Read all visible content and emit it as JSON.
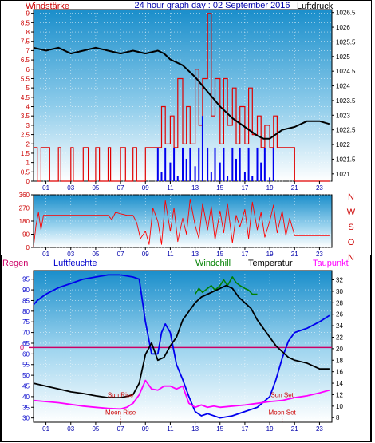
{
  "header": {
    "left_title": "Windstärke",
    "center_title": "24 hour graph day : 02 September 2016",
    "right_title": "Luftdruck"
  },
  "bottom_header": {
    "regen": "Regen",
    "luftfeuchte": "Luftfeuchte",
    "windchill": "Windchill",
    "temperatur": "Temperatur",
    "taupunkt": "Taupunkt"
  },
  "colors": {
    "wind_speed": "#e00000",
    "gust": "#0000ee",
    "pressure": "#000000",
    "direction": "#ff0000",
    "humidity": "#0000ee",
    "temperature": "#000000",
    "windchill": "#008000",
    "dewpoint": "#ff00ff",
    "rain_line": "#cc0066",
    "annotation": "#cc0000"
  },
  "chart_data": [
    {
      "type": "line",
      "panel": "wind-pressure",
      "x_ticks": [
        "01",
        "03",
        "05",
        "07",
        "09",
        "11",
        "13",
        "15",
        "17",
        "19",
        "21",
        "23"
      ],
      "xlim": [
        0,
        24
      ],
      "y_left_ticks": [
        "0",
        "0.5",
        "1",
        "1.5",
        "2",
        "2.5",
        "3",
        "3.5",
        "4",
        "4.5",
        "5",
        "5.5",
        "6",
        "6.5",
        "7",
        "7.5",
        "8",
        "8.5",
        "9"
      ],
      "ylim_left": [
        0,
        9.2
      ],
      "y_right_ticks": [
        "1021",
        "1021.5",
        "1022",
        "1022.5",
        "1023",
        "1023.5",
        "1024",
        "1024.5",
        "1025",
        "1025.5",
        "1026",
        "1026.5"
      ],
      "ylim_right": [
        1020.75,
        1026.6
      ],
      "series": [
        {
          "key": "pressure",
          "axis": "right",
          "x": [
            0,
            1,
            2,
            3,
            4,
            5,
            6,
            7,
            8,
            9,
            10,
            10.5,
            11,
            12,
            13,
            14,
            15,
            16,
            17,
            18,
            18.5,
            19,
            20,
            21,
            22,
            23,
            23.8
          ],
          "values": [
            1025.3,
            1025.2,
            1025.3,
            1025.1,
            1025.2,
            1025.3,
            1025.2,
            1025.1,
            1025.2,
            1025.1,
            1025.2,
            1025.1,
            1024.9,
            1024.7,
            1024.3,
            1023.8,
            1023.3,
            1022.9,
            1022.6,
            1022.3,
            1022.2,
            1022.2,
            1022.5,
            1022.6,
            1022.8,
            1022.8,
            1022.7
          ]
        },
        {
          "key": "wind_speed",
          "axis": "left",
          "x": [
            0,
            0.3,
            0.6,
            1,
            1.3,
            2,
            2.2,
            3,
            3.2,
            4,
            4.4,
            5,
            5.3,
            6,
            6.2,
            7,
            7.4,
            8,
            8.3,
            9,
            9.6,
            10,
            10.3,
            10.6,
            11,
            11.3,
            11.6,
            12,
            12.3,
            12.6,
            13,
            13.3,
            13.6,
            14,
            14.3,
            14.6,
            15,
            15.3,
            15.6,
            16,
            16.3,
            16.6,
            17,
            17.3,
            17.6,
            18,
            18.3,
            18.6,
            19,
            19.3,
            19.6,
            20,
            20.5,
            21,
            22,
            23,
            23.8
          ],
          "values": [
            1.8,
            0,
            1.8,
            1.8,
            0,
            1.8,
            0,
            1.8,
            0,
            1.8,
            0,
            1.8,
            0,
            1.8,
            0,
            1.8,
            0,
            1.8,
            0,
            1.8,
            1.8,
            1.8,
            4,
            2,
            3.5,
            1.8,
            5.5,
            2,
            4,
            2,
            6,
            3,
            5.5,
            9,
            3.5,
            5.5,
            2,
            5.5,
            3,
            5,
            2,
            4,
            2,
            5,
            2.5,
            3.5,
            1.8,
            3,
            1.8,
            3.5,
            1.8,
            1.8,
            1.8,
            0,
            0,
            0,
            0
          ]
        },
        {
          "key": "gust",
          "axis": "left",
          "x": [
            10,
            10.3,
            10.6,
            11,
            11.3,
            11.6,
            12,
            12.3,
            12.6,
            13,
            13.3,
            13.6,
            14,
            14.3,
            14.6,
            15,
            15.3,
            15.6,
            16,
            16.3,
            16.6,
            17,
            17.3,
            17.6,
            18,
            18.3,
            18.6,
            19,
            19.3
          ],
          "values": [
            1.8,
            0.5,
            1.8,
            1,
            1.8,
            0.3,
            1.8,
            1.2,
            1.8,
            0.8,
            1.8,
            3.5,
            1.8,
            0.5,
            1.8,
            1,
            1.8,
            0.3,
            1.8,
            1.2,
            1.8,
            0.5,
            1.8,
            0.3,
            1.8,
            1,
            1.8,
            0.2,
            1.8
          ]
        }
      ]
    },
    {
      "type": "line",
      "panel": "wind-direction",
      "x_ticks": [
        "01",
        "03",
        "05",
        "07",
        "09",
        "11",
        "13",
        "15",
        "17",
        "19",
        "21",
        "23"
      ],
      "xlim": [
        0,
        24
      ],
      "y_ticks": [
        "0",
        "90",
        "180",
        "270",
        "360"
      ],
      "ylim": [
        0,
        360
      ],
      "right_labels": [
        "N",
        "W",
        "S",
        "O",
        "N"
      ],
      "series": [
        {
          "key": "direction",
          "x": [
            0,
            0.2,
            0.4,
            0.6,
            0.8,
            1,
            2,
            3,
            4,
            5,
            6,
            6.3,
            6.6,
            7,
            7.5,
            8,
            8.3,
            8.6,
            9,
            9.3,
            9.6,
            10,
            10.3,
            10.6,
            11,
            11.3,
            11.6,
            12,
            12.3,
            12.6,
            13,
            13.3,
            13.6,
            14,
            14.3,
            14.6,
            15,
            15.3,
            15.6,
            16,
            16.3,
            16.6,
            17,
            17.3,
            17.6,
            18,
            18.3,
            18.6,
            19,
            19.3,
            19.6,
            20,
            20.3,
            20.6,
            21,
            22,
            23,
            23.8
          ],
          "values": [
            0,
            150,
            240,
            120,
            220,
            220,
            220,
            220,
            220,
            220,
            220,
            190,
            240,
            230,
            220,
            220,
            170,
            60,
            110,
            20,
            270,
            180,
            20,
            320,
            110,
            270,
            40,
            200,
            90,
            330,
            150,
            60,
            300,
            120,
            280,
            50,
            250,
            100,
            300,
            30,
            220,
            140,
            260,
            60,
            310,
            120,
            240,
            70,
            180,
            290,
            100,
            250,
            80,
            200,
            80,
            80,
            80,
            80
          ]
        }
      ]
    },
    {
      "type": "line",
      "panel": "temperature-humidity",
      "x_ticks": [
        "01",
        "03",
        "05",
        "07",
        "09",
        "11",
        "13",
        "15",
        "17",
        "19",
        "21",
        "23"
      ],
      "xlim": [
        0,
        24
      ],
      "y_left_ticks": [
        "30",
        "35",
        "40",
        "45",
        "50",
        "55",
        "60",
        "65",
        "70",
        "75",
        "80",
        "85",
        "90",
        "95"
      ],
      "ylim_left": [
        28,
        99
      ],
      "y_right_ticks": [
        "8",
        "10",
        "12",
        "14",
        "16",
        "18",
        "20",
        "22",
        "24",
        "26",
        "28",
        "30",
        "32"
      ],
      "ylim_right": [
        7.2,
        33.6
      ],
      "rain_value": "0",
      "annotations": [
        {
          "label": "Sun Rise",
          "x": 7.0,
          "y_left": 39.8,
          "marker": false
        },
        {
          "label": "Moon Rise",
          "x": 7.0,
          "y_left": 31.5,
          "marker": true
        },
        {
          "label": "Sun Set",
          "x": 20.0,
          "y_left": 39.8,
          "marker": false
        },
        {
          "label": "Moon Set",
          "x": 20.0,
          "y_left": 31.5,
          "marker": true
        }
      ],
      "series": [
        {
          "key": "humidity",
          "axis": "left",
          "x": [
            0,
            0.3,
            1,
            2,
            3,
            4,
            5,
            6,
            7,
            8,
            8.5,
            9,
            9.5,
            10,
            10.3,
            10.6,
            11,
            11.5,
            12,
            12.5,
            13,
            13.5,
            14,
            15,
            16,
            17,
            18,
            19,
            19.5,
            20,
            20.5,
            21,
            22,
            23,
            23.8
          ],
          "values": [
            83,
            85,
            88,
            91,
            93,
            95,
            96,
            97,
            97,
            96,
            95,
            75,
            60,
            60,
            70,
            74,
            70,
            55,
            48,
            40,
            33,
            31,
            32,
            30,
            31,
            33,
            35,
            40,
            48,
            58,
            66,
            70,
            72,
            75,
            78
          ]
        },
        {
          "key": "temperature",
          "axis": "right",
          "x": [
            0,
            1,
            2,
            3,
            4,
            5,
            6,
            7,
            7.5,
            8,
            8.5,
            9,
            9.5,
            10,
            10.5,
            11,
            11.5,
            12,
            12.5,
            13,
            13.5,
            14,
            14.5,
            15,
            15.5,
            16,
            16.5,
            17,
            17.5,
            18,
            18.5,
            19,
            19.5,
            20,
            20.5,
            21,
            22,
            23,
            23.8
          ],
          "values": [
            14,
            13.5,
            13,
            12.5,
            12.2,
            11.8,
            11.5,
            11.5,
            11.7,
            12,
            14,
            19,
            21,
            18,
            18.5,
            20.5,
            22,
            25,
            26.5,
            28,
            29,
            29.5,
            30,
            30.5,
            31,
            30.5,
            29,
            28,
            27,
            25,
            23.5,
            22,
            20.5,
            19.5,
            18.5,
            18,
            17.5,
            16.5,
            16.5
          ]
        },
        {
          "key": "windchill",
          "axis": "right",
          "x": [
            13,
            13.3,
            13.6,
            14,
            14.3,
            14.6,
            15,
            15.3,
            15.6,
            16,
            16.3,
            16.6,
            17,
            17.3,
            17.6,
            18
          ],
          "values": [
            29.5,
            30.5,
            29.8,
            30.5,
            31,
            30.2,
            31,
            32,
            31,
            32.5,
            31.5,
            31,
            30.5,
            30.2,
            29.5,
            29.5
          ]
        },
        {
          "key": "dewpoint",
          "axis": "right",
          "x": [
            0,
            1,
            2,
            3,
            4,
            5,
            6,
            7,
            7.5,
            8,
            8.5,
            9,
            9.5,
            10,
            10.5,
            11,
            11.5,
            12,
            12.5,
            13,
            13.5,
            14,
            14.5,
            15,
            16,
            17,
            18,
            19,
            20,
            21,
            22,
            23,
            23.8
          ],
          "values": [
            11,
            10.8,
            10.6,
            10.3,
            10,
            9.8,
            9.6,
            9.5,
            9.8,
            10.5,
            12,
            14.5,
            13,
            12.8,
            13.5,
            13.5,
            13,
            13.5,
            10.5,
            9.8,
            10.2,
            9.8,
            10,
            9.8,
            10,
            10.2,
            10.5,
            10.8,
            11,
            11.5,
            11.8,
            12.3,
            12.8
          ]
        }
      ]
    }
  ]
}
